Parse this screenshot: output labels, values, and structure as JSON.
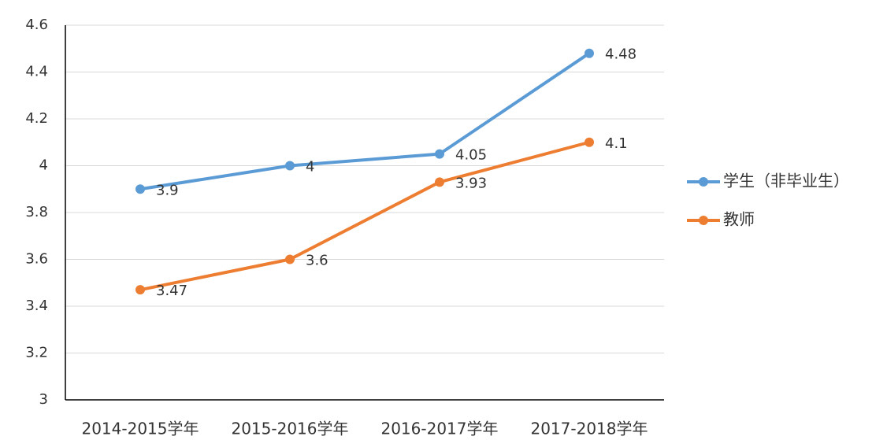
{
  "chart_data": {
    "type": "line",
    "categories": [
      "2014-2015学年",
      "2015-2016学年",
      "2016-2017学年",
      "2017-2018学年"
    ],
    "series": [
      {
        "name": "学生（非毕业生）",
        "color": "#5b9bd5",
        "values": [
          3.9,
          4,
          4.05,
          4.48
        ]
      },
      {
        "name": "教师",
        "color": "#ed7d31",
        "values": [
          3.47,
          3.6,
          3.93,
          4.1
        ]
      }
    ],
    "ylim": [
      3,
      4.6
    ],
    "yticks": [
      3,
      3.2,
      3.4,
      3.6,
      3.8,
      4,
      4.2,
      4.4,
      4.6
    ],
    "grid": true,
    "legend": "right",
    "data_labels": true
  }
}
